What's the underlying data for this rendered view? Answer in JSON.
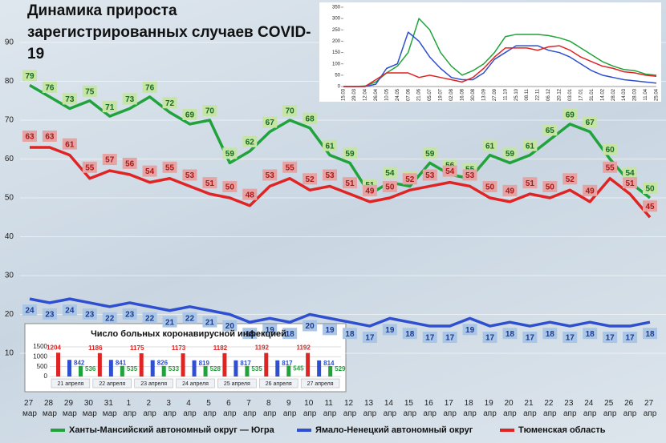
{
  "chart_data": [
    {
      "type": "line",
      "title": "Динамика прироста зарегистрированных случаев COVID-19",
      "categories": [
        "27 мар",
        "28 мар",
        "29 мар",
        "30 мар",
        "31 мар",
        "1 апр",
        "2 апр",
        "3 апр",
        "4 апр",
        "5 апр",
        "6 апр",
        "7 апр",
        "8 апр",
        "9 апр",
        "10 апр",
        "11 апр",
        "12 апр",
        "13 апр",
        "14 апр",
        "15 апр",
        "16 апр",
        "17 апр",
        "18 апр",
        "19 апр",
        "20 апр",
        "21 апр",
        "22 апр",
        "23 апр",
        "24 апр",
        "25 апр",
        "26 апр",
        "27 апр"
      ],
      "ylim": [
        10,
        90
      ],
      "yticks": [
        10,
        20,
        30,
        40,
        50,
        60,
        70,
        80,
        90
      ],
      "grid": true,
      "series": [
        {
          "name": "Ханты-Мансийский автономный округ — Югра",
          "color": "#1fa33a",
          "label_bg": "#c6e4a4",
          "values": [
            79,
            76,
            73,
            75,
            71,
            73,
            76,
            72,
            69,
            70,
            59,
            62,
            67,
            70,
            68,
            61,
            59,
            51,
            54,
            53,
            59,
            56,
            55,
            61,
            59,
            61,
            65,
            69,
            67,
            60,
            54,
            50
          ]
        },
        {
          "name": "Ямало-Ненецкий автономный округ",
          "color": "#2e4fcf",
          "label_bg": "#aac6e6",
          "values": [
            24,
            23,
            24,
            23,
            22,
            23,
            22,
            21,
            22,
            21,
            20,
            18,
            19,
            18,
            20,
            19,
            18,
            17,
            19,
            18,
            17,
            17,
            19,
            17,
            18,
            17,
            18,
            17,
            18,
            17,
            17,
            18
          ]
        },
        {
          "name": "Тюменская область",
          "color": "#e02424",
          "label_bg": "#e6a3a3",
          "values": [
            63,
            63,
            61,
            55,
            57,
            56,
            54,
            55,
            53,
            51,
            50,
            48,
            53,
            55,
            52,
            53,
            51,
            49,
            50,
            52,
            53,
            54,
            53,
            50,
            49,
            51,
            50,
            52,
            49,
            55,
            51,
            45
          ]
        }
      ]
    },
    {
      "type": "line",
      "categories": [
        "15.03",
        "29.03",
        "12.04",
        "26.04",
        "10.05",
        "24.05",
        "07.06",
        "21.06",
        "05.07",
        "19.07",
        "02.08",
        "16.08",
        "30.08",
        "13.09",
        "27.09",
        "11.10",
        "25.10",
        "08.11",
        "22.11",
        "06.12",
        "20.12",
        "03.01",
        "17.01",
        "31.01",
        "14.02",
        "28.02",
        "14.03",
        "28.03",
        "11.04",
        "25.04"
      ],
      "ylim": [
        0,
        350
      ],
      "yticks": [
        0,
        50,
        100,
        150,
        200,
        250,
        300,
        350
      ],
      "series": [
        {
          "color": "#1fa33a",
          "values": [
            0,
            0,
            2,
            20,
            60,
            90,
            150,
            300,
            250,
            150,
            90,
            50,
            70,
            100,
            150,
            220,
            230,
            230,
            230,
            225,
            215,
            200,
            170,
            140,
            110,
            90,
            75,
            70,
            55,
            50
          ]
        },
        {
          "color": "#2e4fcf",
          "values": [
            0,
            0,
            0,
            10,
            80,
            100,
            240,
            200,
            130,
            80,
            40,
            30,
            30,
            60,
            120,
            150,
            180,
            180,
            180,
            160,
            150,
            130,
            100,
            70,
            50,
            40,
            30,
            25,
            20,
            15
          ]
        },
        {
          "color": "#e02424",
          "values": [
            0,
            0,
            0,
            30,
            60,
            60,
            60,
            40,
            50,
            40,
            30,
            20,
            40,
            80,
            130,
            170,
            170,
            170,
            160,
            175,
            180,
            160,
            130,
            110,
            90,
            80,
            65,
            60,
            50,
            45
          ]
        }
      ]
    },
    {
      "type": "bar",
      "title": "Число больных коронавирусной инфекцией",
      "categories": [
        "21 апреля",
        "22 апреля",
        "23 апреля",
        "24 апреля",
        "25 апреля",
        "26 апреля",
        "27 апреля"
      ],
      "ylim": [
        0,
        1500
      ],
      "yticks": [
        0,
        500,
        1000,
        1500
      ],
      "series": [
        {
          "color": "#e02424",
          "values": [
            1204,
            1186,
            1175,
            1173,
            1182,
            1192,
            1192
          ]
        },
        {
          "color": "#2e4fcf",
          "values": [
            842,
            841,
            826,
            819,
            817,
            817,
            814
          ]
        },
        {
          "color": "#1fa33a",
          "values": [
            536,
            535,
            533,
            528,
            535,
            545,
            529
          ]
        }
      ]
    }
  ]
}
